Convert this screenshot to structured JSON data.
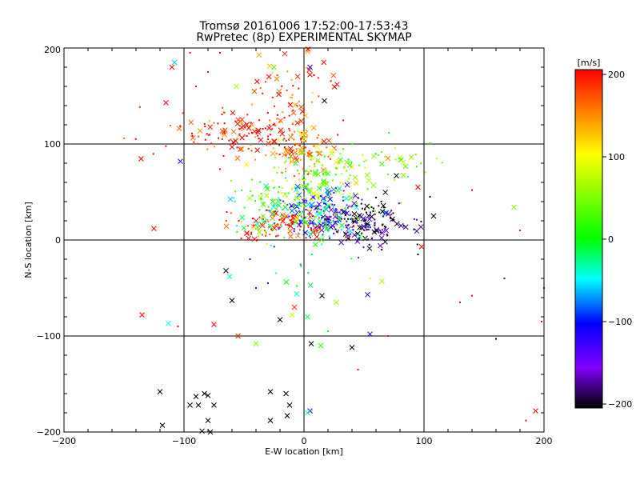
{
  "chart_data": {
    "type": "scatter",
    "title": "Tromsø 20161006 17:52:00-17:53:43",
    "subtitle": "RwPretec (8p) EXPERIMENTAL SKYMAP",
    "xlabel": "E-W location [km]",
    "ylabel": "N-S location [km]",
    "xlim": [
      -200,
      200
    ],
    "ylim": [
      -200,
      200
    ],
    "xticks": [
      "−200",
      "−100",
      "0",
      "100",
      "200"
    ],
    "yticks": [
      "−200",
      "−100",
      "0",
      "100",
      "200"
    ],
    "grid": true,
    "colorbar": {
      "label": "[m/s]",
      "range": [
        -200,
        200
      ],
      "ticks": [
        "200",
        "100",
        "0",
        "−100",
        "−200"
      ],
      "colors": [
        "#ff0000",
        "#ffff00",
        "#00ff00",
        "#00ffff",
        "#0000ff",
        "#7f00ff",
        "#000000"
      ]
    },
    "markers": [
      "x",
      "dot"
    ],
    "clusters": [
      {
        "cx": -55,
        "cy": 112,
        "sx": 35,
        "sy": 12,
        "v": 190,
        "n": 140
      },
      {
        "cx": 0,
        "cy": 95,
        "sx": 12,
        "sy": 15,
        "v": 150,
        "n": 90
      },
      {
        "cx": 40,
        "cy": 80,
        "sx": 30,
        "sy": 12,
        "v": 40,
        "n": 70
      },
      {
        "cx": -10,
        "cy": 160,
        "sx": 20,
        "sy": 22,
        "v": 170,
        "n": 60
      },
      {
        "cx": 15,
        "cy": 28,
        "sx": 18,
        "sy": 14,
        "v": -90,
        "n": 180
      },
      {
        "cx": 50,
        "cy": 18,
        "sx": 18,
        "sy": 12,
        "v": -185,
        "n": 150
      },
      {
        "cx": -20,
        "cy": 15,
        "sx": 25,
        "sy": 8,
        "v": 185,
        "n": 110
      },
      {
        "cx": 10,
        "cy": 55,
        "sx": 25,
        "sy": 18,
        "v": 60,
        "n": 120
      },
      {
        "cx": -25,
        "cy": 40,
        "sx": 18,
        "sy": 15,
        "v": 0,
        "n": 60
      },
      {
        "cx": 0,
        "cy": 10,
        "sx": 30,
        "sy": 25,
        "v": -20,
        "n": 60
      }
    ],
    "scattered": [
      {
        "x": -120,
        "y": -158,
        "v": -200,
        "m": "x"
      },
      {
        "x": -118,
        "y": -193,
        "v": -200,
        "m": "x"
      },
      {
        "x": -90,
        "y": -163,
        "v": -200,
        "m": "x"
      },
      {
        "x": -95,
        "y": -172,
        "v": -200,
        "m": "x"
      },
      {
        "x": -88,
        "y": -172,
        "v": -200,
        "m": "x"
      },
      {
        "x": -80,
        "y": -162,
        "v": -200,
        "m": "x"
      },
      {
        "x": -75,
        "y": -172,
        "v": -200,
        "m": "x"
      },
      {
        "x": -83,
        "y": -160,
        "v": -200,
        "m": "x"
      },
      {
        "x": -80,
        "y": -188,
        "v": -200,
        "m": "x"
      },
      {
        "x": -78,
        "y": -200,
        "v": -200,
        "m": "x"
      },
      {
        "x": -85,
        "y": -199,
        "v": -200,
        "m": "x"
      },
      {
        "x": -28,
        "y": -188,
        "v": -200,
        "m": "x"
      },
      {
        "x": -12,
        "y": -172,
        "v": -200,
        "m": "x"
      },
      {
        "x": -14,
        "y": -183,
        "v": -200,
        "m": "x"
      },
      {
        "x": -28,
        "y": -158,
        "v": -200,
        "m": "x"
      },
      {
        "x": -15,
        "y": -160,
        "v": -200,
        "m": "x"
      },
      {
        "x": 5,
        "y": -178,
        "v": -120,
        "m": "x"
      },
      {
        "x": 3,
        "y": -180,
        "v": -40,
        "m": "x"
      },
      {
        "x": -135,
        "y": -78,
        "v": 200,
        "m": "x"
      },
      {
        "x": -113,
        "y": -87,
        "v": -50,
        "m": "x"
      },
      {
        "x": -75,
        "y": -88,
        "v": 200,
        "m": "x"
      },
      {
        "x": -60,
        "y": -63,
        "v": -200,
        "m": "x"
      },
      {
        "x": -62,
        "y": -38,
        "v": -40,
        "m": "x"
      },
      {
        "x": -65,
        "y": -32,
        "v": -200,
        "m": "x"
      },
      {
        "x": -20,
        "y": -83,
        "v": -200,
        "m": "x"
      },
      {
        "x": -8,
        "y": -70,
        "v": 180,
        "m": "x"
      },
      {
        "x": -10,
        "y": -78,
        "v": 80,
        "m": "x"
      },
      {
        "x": 3,
        "y": -80,
        "v": -20,
        "m": "x"
      },
      {
        "x": 6,
        "y": -108,
        "v": -200,
        "m": "x"
      },
      {
        "x": 14,
        "y": -110,
        "v": 20,
        "m": "x"
      },
      {
        "x": 15,
        "y": -58,
        "v": -200,
        "m": "x"
      },
      {
        "x": 27,
        "y": -65,
        "v": 60,
        "m": "x"
      },
      {
        "x": 40,
        "y": -112,
        "v": -200,
        "m": "x"
      },
      {
        "x": 55,
        "y": -98,
        "v": -120,
        "m": "x"
      },
      {
        "x": 53,
        "y": -57,
        "v": -120,
        "m": "x"
      },
      {
        "x": 65,
        "y": -43,
        "v": 60,
        "m": "x"
      },
      {
        "x": -40,
        "y": -108,
        "v": 50,
        "m": "x"
      },
      {
        "x": -55,
        "y": -100,
        "v": 180,
        "m": "x"
      },
      {
        "x": 175,
        "y": 34,
        "v": 40,
        "m": "x"
      },
      {
        "x": 193,
        "y": -178,
        "v": 200,
        "m": "x"
      },
      {
        "x": 108,
        "y": 25,
        "v": -200,
        "m": "x"
      },
      {
        "x": 95,
        "y": 55,
        "v": 200,
        "m": "x"
      },
      {
        "x": 98,
        "y": -7,
        "v": 200,
        "m": "x"
      },
      {
        "x": 77,
        "y": 67,
        "v": -200,
        "m": "x"
      },
      {
        "x": -125,
        "y": 12,
        "v": 200,
        "m": "x"
      },
      {
        "x": -103,
        "y": 82,
        "v": -120,
        "m": "x"
      },
      {
        "x": -115,
        "y": 143,
        "v": 200,
        "m": "x"
      },
      {
        "x": -110,
        "y": 180,
        "v": 200,
        "m": "x"
      },
      {
        "x": -108,
        "y": 185,
        "v": -60,
        "m": "x"
      },
      {
        "x": -25,
        "y": 180,
        "v": 40,
        "m": "x"
      },
      {
        "x": 5,
        "y": 180,
        "v": -120,
        "m": "x"
      },
      {
        "x": 17,
        "y": 145,
        "v": -200,
        "m": "x"
      },
      {
        "x": 105,
        "y": 45,
        "v": -200,
        "m": "dot"
      },
      {
        "x": 140,
        "y": -58,
        "v": 200,
        "m": "dot"
      },
      {
        "x": 130,
        "y": -65,
        "v": 200,
        "m": "dot"
      },
      {
        "x": 160,
        "y": -103,
        "v": -200,
        "m": "dot"
      },
      {
        "x": 167,
        "y": -40,
        "v": -120,
        "m": "dot"
      },
      {
        "x": 200,
        "y": -50,
        "v": 200,
        "m": "dot"
      },
      {
        "x": 198,
        "y": -85,
        "v": 200,
        "m": "dot"
      },
      {
        "x": 180,
        "y": 10,
        "v": 200,
        "m": "dot"
      },
      {
        "x": 185,
        "y": -188,
        "v": 200,
        "m": "dot"
      },
      {
        "x": 140,
        "y": 52,
        "v": 200,
        "m": "dot"
      },
      {
        "x": 45,
        "y": -135,
        "v": 200,
        "m": "dot"
      },
      {
        "x": 95,
        "y": -15,
        "v": -200,
        "m": "dot"
      },
      {
        "x": -90,
        "y": 160,
        "v": 200,
        "m": "dot"
      },
      {
        "x": -80,
        "y": 175,
        "v": 200,
        "m": "dot"
      },
      {
        "x": -95,
        "y": 195,
        "v": 200,
        "m": "dot"
      },
      {
        "x": -70,
        "y": 195,
        "v": 200,
        "m": "dot"
      },
      {
        "x": -105,
        "y": -90,
        "v": 200,
        "m": "dot"
      },
      {
        "x": -40,
        "y": -50,
        "v": -120,
        "m": "dot"
      },
      {
        "x": -30,
        "y": -45,
        "v": -120,
        "m": "dot"
      },
      {
        "x": -45,
        "y": -20,
        "v": -120,
        "m": "dot"
      },
      {
        "x": 20,
        "y": -95,
        "v": 0,
        "m": "dot"
      },
      {
        "x": 55,
        "y": -40,
        "v": 80,
        "m": "dot"
      },
      {
        "x": 70,
        "y": -100,
        "v": 200,
        "m": "dot"
      }
    ]
  }
}
